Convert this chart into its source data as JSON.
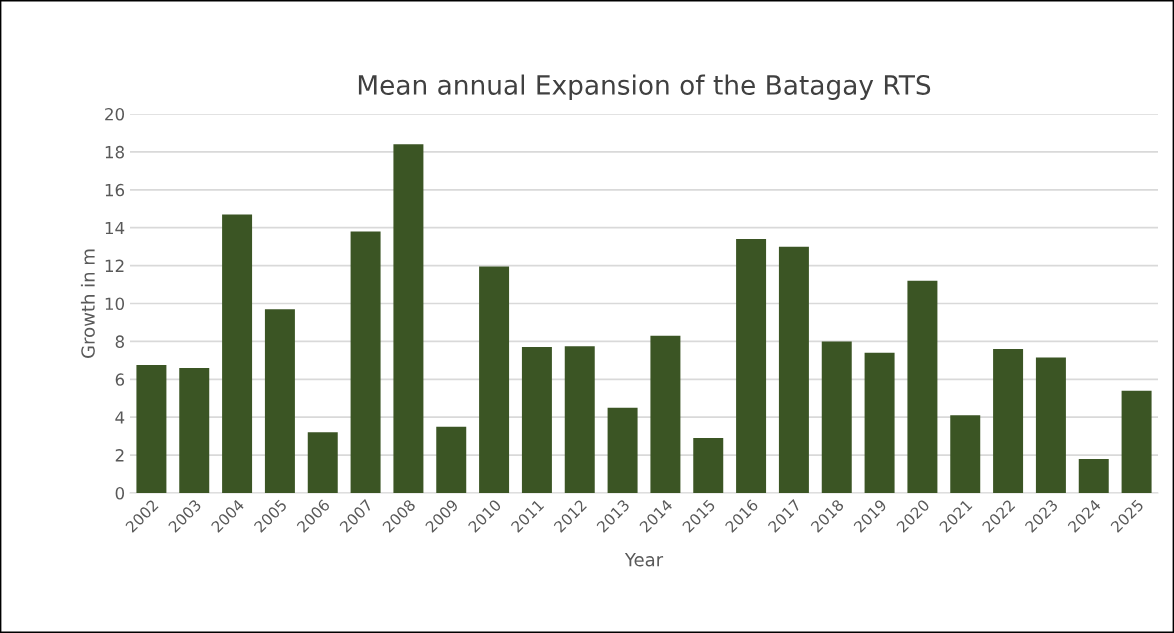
{
  "chart_data": {
    "type": "bar",
    "title": "Mean annual Expansion of the Batagay RTS",
    "xlabel": "Year",
    "ylabel": "Growth in m",
    "categories": [
      "2002",
      "2003",
      "2004",
      "2005",
      "2006",
      "2007",
      "2008",
      "2009",
      "2010",
      "2011",
      "2012",
      "2013",
      "2014",
      "2015",
      "2016",
      "2017",
      "2018",
      "2019",
      "2020",
      "2021",
      "2022",
      "2023",
      "2024",
      "2025"
    ],
    "values": [
      6.75,
      6.6,
      14.7,
      9.7,
      3.2,
      13.8,
      18.4,
      3.5,
      11.95,
      7.7,
      7.75,
      4.5,
      8.3,
      2.9,
      13.4,
      13.0,
      8.0,
      7.4,
      11.2,
      4.1,
      7.6,
      7.15,
      1.8,
      5.4
    ],
    "color": "#3b5524",
    "ylim": [
      0,
      20
    ],
    "yticks": [
      0,
      2,
      4,
      6,
      8,
      10,
      12,
      14,
      16,
      18,
      20
    ],
    "grid": "y",
    "legend": false
  }
}
